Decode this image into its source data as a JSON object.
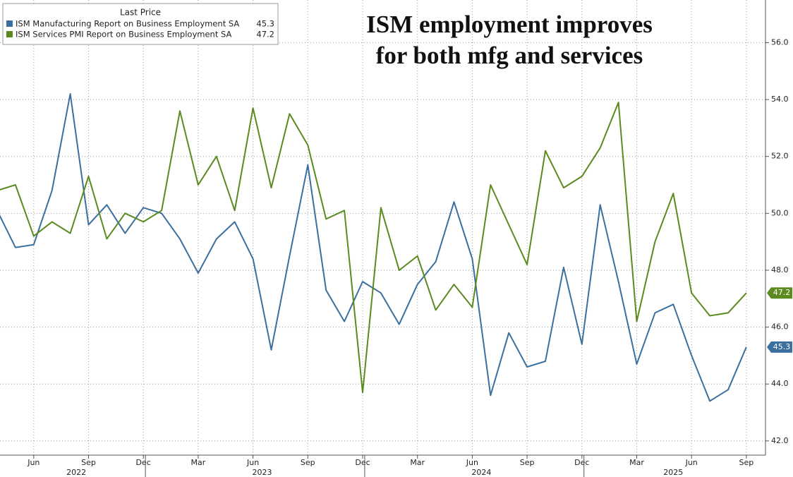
{
  "chart_data": {
    "type": "line",
    "title": [
      "ISM employment improves",
      "for both mfg and services"
    ],
    "legend_title": "Last Price",
    "x": [
      "2022-04",
      "2022-05",
      "2022-06",
      "2022-07",
      "2022-08",
      "2022-09",
      "2022-10",
      "2022-11",
      "2022-12",
      "2023-01",
      "2023-02",
      "2023-03",
      "2023-04",
      "2023-05",
      "2023-06",
      "2023-07",
      "2023-08",
      "2023-09",
      "2023-10",
      "2023-11",
      "2023-12",
      "2024-01",
      "2024-02",
      "2024-03",
      "2024-04",
      "2024-05",
      "2024-06",
      "2024-07",
      "2024-08",
      "2024-09",
      "2024-10",
      "2024-11",
      "2024-12",
      "2025-01",
      "2025-02",
      "2025-03",
      "2025-04",
      "2025-05",
      "2025-06",
      "2025-07",
      "2025-08",
      "2025-09"
    ],
    "xticks": [
      {
        "value": "2022-06",
        "label": "Jun"
      },
      {
        "value": "2022-09",
        "label": "Sep"
      },
      {
        "value": "2022-12",
        "label": "Dec"
      },
      {
        "value": "2023-03",
        "label": "Mar"
      },
      {
        "value": "2023-06",
        "label": "Jun"
      },
      {
        "value": "2023-09",
        "label": "Sep"
      },
      {
        "value": "2023-12",
        "label": "Dec"
      },
      {
        "value": "2024-03",
        "label": "Mar"
      },
      {
        "value": "2024-06",
        "label": "Jun"
      },
      {
        "value": "2024-09",
        "label": "Sep"
      },
      {
        "value": "2024-12",
        "label": "Dec"
      },
      {
        "value": "2025-03",
        "label": "Mar"
      },
      {
        "value": "2025-06",
        "label": "Jun"
      },
      {
        "value": "2025-09",
        "label": "Sep"
      }
    ],
    "years": [
      "2022",
      "2023",
      "2024",
      "2025"
    ],
    "ylim": [
      41.5,
      57.5
    ],
    "yticks": [
      {
        "value": 42,
        "label": "42.0"
      },
      {
        "value": 44,
        "label": "44.0"
      },
      {
        "value": 46,
        "label": "46.0"
      },
      {
        "value": 48,
        "label": "48.0"
      },
      {
        "value": 50,
        "label": "50.0"
      },
      {
        "value": 52,
        "label": "52.0"
      },
      {
        "value": 54,
        "label": "54.0"
      },
      {
        "value": 56,
        "label": "56.0"
      }
    ],
    "grid": true,
    "legend": "top-left",
    "series": [
      {
        "name": "ISM Manufacturing Report on Business Employment SA",
        "color": "#3a6f9f",
        "values": [
          50.1,
          48.8,
          48.9,
          50.8,
          54.2,
          49.6,
          50.3,
          49.3,
          50.2,
          50.0,
          49.1,
          47.9,
          49.1,
          49.7,
          48.4,
          45.2,
          48.5,
          51.7,
          47.3,
          46.2,
          47.6,
          47.2,
          46.1,
          47.5,
          48.3,
          50.4,
          48.4,
          43.6,
          45.8,
          44.6,
          44.8,
          48.1,
          45.4,
          50.3,
          47.6,
          44.7,
          46.5,
          46.8,
          45.0,
          43.4,
          43.8,
          45.3
        ]
      },
      {
        "name": "ISM Services PMI Report on Business Employment SA",
        "color": "#5b8a1e",
        "values": [
          50.8,
          51.0,
          49.2,
          49.7,
          49.3,
          51.3,
          49.1,
          50.0,
          49.7,
          50.1,
          53.6,
          51.0,
          52.0,
          50.1,
          53.7,
          50.9,
          53.5,
          52.4,
          49.8,
          50.1,
          43.7,
          50.2,
          48.0,
          48.5,
          46.6,
          47.5,
          46.7,
          51.0,
          49.6,
          48.2,
          52.2,
          50.9,
          51.3,
          52.3,
          53.9,
          46.2,
          49.0,
          50.7,
          47.2,
          46.4,
          46.5,
          47.2
        ]
      }
    ]
  }
}
